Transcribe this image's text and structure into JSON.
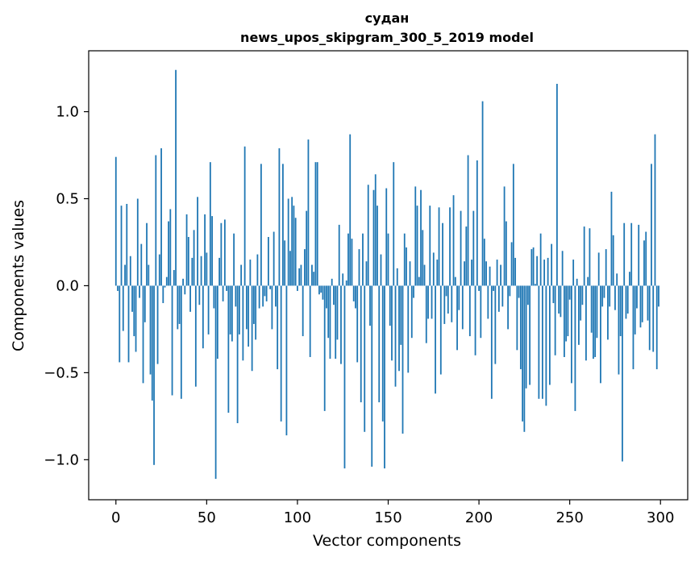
{
  "chart_data": {
    "type": "bar",
    "title": "судан",
    "subtitle": "news_upos_skipgram_300_5_2019 model",
    "xlabel": "Vector components",
    "ylabel": "Components values",
    "xlim": [
      -15,
      315
    ],
    "ylim": [
      -1.23,
      1.35
    ],
    "xticks": [
      0,
      50,
      100,
      150,
      200,
      250,
      300
    ],
    "yticks": [
      -1.0,
      -0.5,
      0.0,
      0.5,
      1.0
    ],
    "ytick_labels": [
      "−1.0",
      "−0.5",
      "0.0",
      "0.5",
      "1.0"
    ],
    "bar_color": "#1f77b4",
    "n_components": 300,
    "values": [
      0.74,
      -0.03,
      -0.44,
      0.46,
      -0.26,
      0.12,
      0.47,
      -0.44,
      0.17,
      -0.15,
      -0.29,
      -0.38,
      0.5,
      -0.07,
      0.24,
      -0.56,
      -0.21,
      0.36,
      0.12,
      -0.51,
      -0.66,
      -1.03,
      0.75,
      -0.45,
      0.18,
      0.79,
      -0.1,
      -0.01,
      0.05,
      0.37,
      0.44,
      -0.63,
      0.09,
      1.24,
      -0.25,
      -0.22,
      -0.65,
      0.04,
      -0.05,
      0.41,
      0.28,
      -0.15,
      0.16,
      0.32,
      -0.58,
      0.51,
      -0.11,
      0.17,
      -0.36,
      0.41,
      0.19,
      -0.28,
      0.71,
      0.4,
      -0.13,
      -1.11,
      -0.42,
      0.16,
      0.36,
      -0.09,
      0.38,
      -0.03,
      -0.73,
      -0.28,
      -0.32,
      0.3,
      -0.12,
      -0.79,
      -0.28,
      0.12,
      -0.43,
      0.8,
      -0.25,
      -0.35,
      0.15,
      -0.49,
      -0.22,
      -0.31,
      0.18,
      -0.13,
      0.7,
      -0.12,
      -0.06,
      -0.09,
      0.28,
      -0.02,
      -0.25,
      0.31,
      -0.12,
      -0.48,
      0.79,
      -0.78,
      0.7,
      0.26,
      -0.86,
      0.5,
      0.2,
      0.51,
      0.46,
      0.39,
      -0.03,
      0.1,
      0.12,
      -0.29,
      0.21,
      0.43,
      0.84,
      -0.41,
      0.12,
      0.08,
      0.71,
      0.71,
      -0.05,
      -0.04,
      -0.08,
      -0.72,
      -0.13,
      -0.3,
      -0.42,
      0.04,
      -0.11,
      -0.42,
      -0.31,
      0.35,
      -0.45,
      0.07,
      -1.05,
      0.03,
      0.3,
      0.87,
      0.27,
      -0.09,
      -0.13,
      -0.44,
      0.21,
      -0.67,
      0.3,
      -0.84,
      0.14,
      0.58,
      -0.23,
      -1.04,
      0.55,
      0.64,
      0.46,
      -0.67,
      0.18,
      -0.78,
      -1.05,
      0.56,
      0.3,
      -0.23,
      -0.43,
      0.71,
      -0.58,
      0.1,
      -0.49,
      -0.34,
      -0.85,
      0.3,
      0.22,
      -0.5,
      0.14,
      -0.3,
      -0.07,
      0.57,
      0.46,
      0.05,
      0.55,
      0.32,
      0.12,
      -0.33,
      -0.19,
      0.46,
      -0.19,
      0.19,
      -0.62,
      0.15,
      0.45,
      -0.51,
      0.36,
      -0.22,
      -0.06,
      -0.16,
      0.45,
      -0.21,
      0.52,
      0.05,
      -0.37,
      -0.14,
      0.43,
      -0.25,
      0.14,
      0.34,
      0.75,
      -0.29,
      0.15,
      0.43,
      -0.4,
      0.72,
      -0.03,
      -0.3,
      1.06,
      0.27,
      0.14,
      -0.19,
      0.11,
      -0.65,
      -0.03,
      -0.45,
      0.15,
      -0.15,
      0.12,
      -0.12,
      0.57,
      0.37,
      -0.25,
      -0.06,
      0.25,
      0.7,
      0.16,
      -0.37,
      -0.07,
      -0.48,
      -0.78,
      -0.84,
      -0.59,
      -0.11,
      -0.57,
      0.21,
      0.22,
      0.01,
      0.17,
      -0.65,
      0.3,
      -0.65,
      0.15,
      -0.69,
      0.16,
      -0.57,
      0.24,
      -0.1,
      -0.4,
      1.16,
      -0.16,
      -0.18,
      0.2,
      -0.41,
      -0.32,
      -0.29,
      -0.08,
      -0.56,
      0.15,
      -0.72,
      0.04,
      -0.34,
      -0.2,
      -0.11,
      0.34,
      -0.43,
      0.05,
      0.33,
      -0.27,
      -0.42,
      -0.41,
      -0.3,
      0.19,
      -0.56,
      -0.12,
      -0.07,
      0.21,
      -0.31,
      -0.12,
      0.54,
      0.29,
      -0.14,
      0.07,
      -0.51,
      -0.29,
      -1.01,
      0.36,
      -0.19,
      -0.16,
      0.08,
      0.36,
      -0.48,
      -0.28,
      -0.13,
      0.35,
      -0.24,
      -0.21,
      0.26,
      0.31,
      -0.2,
      -0.37,
      0.7,
      -0.38,
      0.87,
      -0.48,
      -0.12
    ]
  }
}
